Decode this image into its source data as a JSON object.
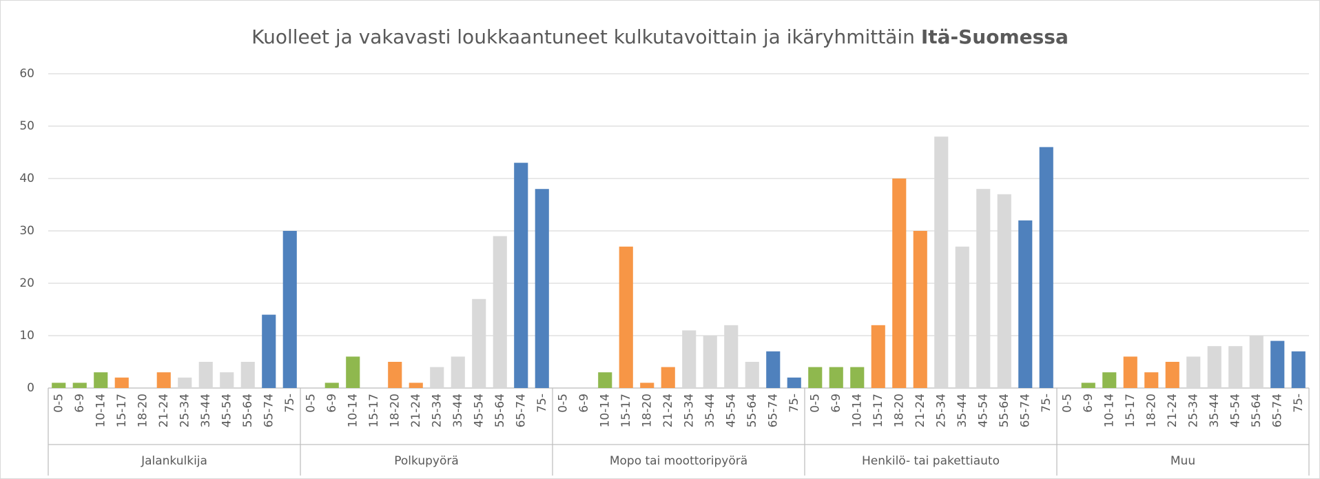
{
  "chart_data": {
    "type": "bar",
    "title": [
      "Kuolleet ja vakavasti loukkaantuneet kulkutavoittain ja ikäryhmittäin",
      "Itä-Suomessa"
    ],
    "categories": [
      "0-5",
      "6-9",
      "10-14",
      "15-17",
      "18-20",
      "21-24",
      "25-34",
      "35-44",
      "45-54",
      "55-64",
      "65-74",
      "75-"
    ],
    "colors": [
      "#8fb84e",
      "#8fb84e",
      "#8fb84e",
      "#f79646",
      "#f79646",
      "#f79646",
      "#d9d9d9",
      "#d9d9d9",
      "#d9d9d9",
      "#d9d9d9",
      "#4f81bd",
      "#4f81bd"
    ],
    "groups": [
      {
        "name": "Jalankulkija",
        "values": [
          1,
          1,
          3,
          2,
          0,
          3,
          2,
          5,
          3,
          5,
          14,
          30
        ]
      },
      {
        "name": "Polkupyörä",
        "values": [
          0,
          1,
          6,
          0,
          5,
          1,
          4,
          6,
          17,
          29,
          43,
          38
        ]
      },
      {
        "name": "Mopo tai moottoripyörä",
        "values": [
          0,
          0,
          3,
          27,
          1,
          4,
          11,
          10,
          12,
          5,
          7,
          2
        ]
      },
      {
        "name": "Henkilö- tai pakettiauto",
        "values": [
          4,
          4,
          4,
          12,
          40,
          30,
          48,
          27,
          38,
          37,
          32,
          46
        ]
      },
      {
        "name": "Muu",
        "values": [
          0,
          1,
          3,
          6,
          3,
          5,
          6,
          8,
          8,
          10,
          9,
          7
        ]
      }
    ],
    "ylim": [
      0,
      60
    ],
    "yticks": [
      0,
      10,
      20,
      30,
      40,
      50,
      60
    ],
    "grid": true
  }
}
